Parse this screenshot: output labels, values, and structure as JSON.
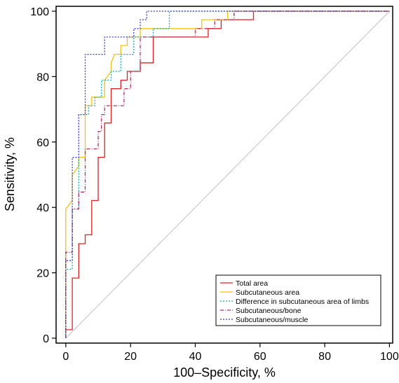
{
  "chart_data": {
    "type": "line",
    "xlabel": "100–Specificity, %",
    "ylabel": "Sensitivity, %",
    "xlim": [
      -3,
      101
    ],
    "ylim": [
      -1.5,
      101.5
    ],
    "x_ticks": [
      "0",
      "20",
      "40",
      "60",
      "80",
      "100"
    ],
    "y_ticks": [
      "0",
      "20",
      "40",
      "60",
      "80",
      "100"
    ],
    "grid": false,
    "legend_position": "bottom-right",
    "reference_line": {
      "points": [
        [
          0,
          0
        ],
        [
          100,
          100
        ]
      ],
      "color": "#c0c0c0"
    },
    "series": [
      {
        "name": "Total area",
        "color": "#dd2222",
        "dash": "solid",
        "points": [
          [
            0,
            0
          ],
          [
            0,
            2.6
          ],
          [
            2,
            2.6
          ],
          [
            2,
            18.4
          ],
          [
            4,
            18.4
          ],
          [
            4,
            28.9
          ],
          [
            6,
            28.9
          ],
          [
            6,
            31.6
          ],
          [
            8,
            31.6
          ],
          [
            8,
            42.1
          ],
          [
            10,
            42.1
          ],
          [
            10,
            55.3
          ],
          [
            12,
            55.3
          ],
          [
            12,
            65.8
          ],
          [
            14,
            65.8
          ],
          [
            14,
            76.3
          ],
          [
            17,
            76.3
          ],
          [
            17,
            78.9
          ],
          [
            19,
            78.9
          ],
          [
            19,
            81.6
          ],
          [
            23,
            81.6
          ],
          [
            23,
            84.2
          ],
          [
            27,
            84.2
          ],
          [
            27,
            92.1
          ],
          [
            44,
            92.1
          ],
          [
            44,
            94.7
          ],
          [
            48,
            94.7
          ],
          [
            48,
            97.4
          ],
          [
            58,
            97.4
          ],
          [
            58,
            100
          ],
          [
            100,
            100
          ]
        ]
      },
      {
        "name": "Subcutaneous area",
        "color": "#f2c21b",
        "dash": "solid",
        "points": [
          [
            0,
            0
          ],
          [
            0,
            39.5
          ],
          [
            2,
            42.1
          ],
          [
            2,
            50
          ],
          [
            4,
            52.6
          ],
          [
            4,
            55.3
          ],
          [
            6,
            55.3
          ],
          [
            6,
            71.1
          ],
          [
            8,
            71.1
          ],
          [
            8,
            73.7
          ],
          [
            10,
            73.7
          ],
          [
            12,
            73.7
          ],
          [
            12,
            78.9
          ],
          [
            14,
            81.6
          ],
          [
            14,
            84.2
          ],
          [
            15,
            86.8
          ],
          [
            17,
            86.8
          ],
          [
            17,
            89.5
          ],
          [
            19,
            89.5
          ],
          [
            19,
            92.1
          ],
          [
            23,
            92.1
          ],
          [
            23,
            94.7
          ],
          [
            42,
            94.7
          ],
          [
            42,
            97.4
          ],
          [
            50,
            97.4
          ],
          [
            50,
            100
          ],
          [
            100,
            100
          ]
        ]
      },
      {
        "name": "Difference in subcutaneous area of limbs",
        "color": "#1aa6b7",
        "dash": "2,2",
        "points": [
          [
            0,
            0
          ],
          [
            0,
            21.1
          ],
          [
            2,
            21.1
          ],
          [
            2,
            39.5
          ],
          [
            4,
            39.5
          ],
          [
            4,
            68.4
          ],
          [
            7,
            68.4
          ],
          [
            7,
            71.1
          ],
          [
            9,
            71.1
          ],
          [
            9,
            73.7
          ],
          [
            11,
            73.7
          ],
          [
            11,
            78.9
          ],
          [
            14,
            78.9
          ],
          [
            14,
            81.6
          ],
          [
            17,
            81.6
          ],
          [
            17,
            86.8
          ],
          [
            21,
            86.8
          ],
          [
            21,
            92.1
          ],
          [
            27,
            92.1
          ],
          [
            27,
            94.7
          ],
          [
            32,
            94.7
          ],
          [
            32,
            100
          ],
          [
            100,
            100
          ]
        ]
      },
      {
        "name": "Subcutaneous/bone",
        "color": "#b0305c",
        "dash": "5,2,1,2",
        "points": [
          [
            0,
            0
          ],
          [
            0,
            26.3
          ],
          [
            2,
            26.3
          ],
          [
            2,
            39.5
          ],
          [
            4,
            39.5
          ],
          [
            4,
            44.7
          ],
          [
            6,
            44.7
          ],
          [
            6,
            57.9
          ],
          [
            10,
            57.9
          ],
          [
            10,
            63.2
          ],
          [
            11,
            63.2
          ],
          [
            11,
            68.4
          ],
          [
            12,
            68.4
          ],
          [
            12,
            71.1
          ],
          [
            18,
            71.1
          ],
          [
            18,
            76.3
          ],
          [
            20,
            76.3
          ],
          [
            20,
            81.6
          ],
          [
            23,
            81.6
          ],
          [
            23,
            92.1
          ],
          [
            40,
            92.1
          ],
          [
            40,
            94.7
          ],
          [
            46,
            94.7
          ],
          [
            46,
            97.4
          ],
          [
            52,
            97.4
          ],
          [
            52,
            100
          ],
          [
            100,
            100
          ]
        ]
      },
      {
        "name": "Subcutaneous/muscle",
        "color": "#3a3ad6",
        "dash": "2,2",
        "points": [
          [
            0,
            0
          ],
          [
            0,
            23.7
          ],
          [
            2,
            23.7
          ],
          [
            2,
            55.3
          ],
          [
            4,
            55.3
          ],
          [
            4,
            68.4
          ],
          [
            6,
            68.4
          ],
          [
            6,
            86.8
          ],
          [
            12,
            86.8
          ],
          [
            12,
            92.1
          ],
          [
            21,
            92.1
          ],
          [
            21,
            94.7
          ],
          [
            23,
            94.7
          ],
          [
            23,
            97.4
          ],
          [
            25,
            97.4
          ],
          [
            25,
            100
          ],
          [
            100,
            100
          ]
        ]
      }
    ]
  }
}
